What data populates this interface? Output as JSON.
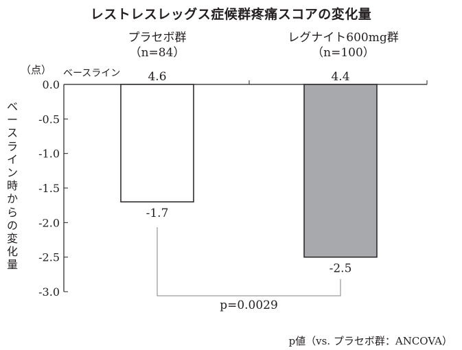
{
  "chart_data": {
    "type": "bar",
    "title": "レストレスレッグス症候群疼痛スコアの変化量",
    "ylabel": "ベースライン時からの変化量",
    "unit_label": "（点）",
    "baseline_label": "ベースライン",
    "ylim": [
      -3.0,
      0.0
    ],
    "yticks": [
      "0.0",
      "-0.5",
      "-1.0",
      "-1.5",
      "-2.0",
      "-2.5",
      "-3.0"
    ],
    "ytick_values": [
      0.0,
      -0.5,
      -1.0,
      -1.5,
      -2.0,
      -2.5,
      -3.0
    ],
    "categories": [
      "プラセボ群",
      "レグナイト600mg群"
    ],
    "n_labels": [
      "（n=84）",
      "（n=100）"
    ],
    "baseline_values": [
      "4.6",
      "4.4"
    ],
    "values": [
      -1.7,
      -2.5
    ],
    "value_labels": [
      "-1.7",
      "-2.5"
    ],
    "bar_colors": [
      "#ffffff",
      "#a7a9ac"
    ],
    "p_value_label": "p=0.0029",
    "footnote": "p値（vs. プラセボ群：ANCOVA）",
    "grid": false
  }
}
